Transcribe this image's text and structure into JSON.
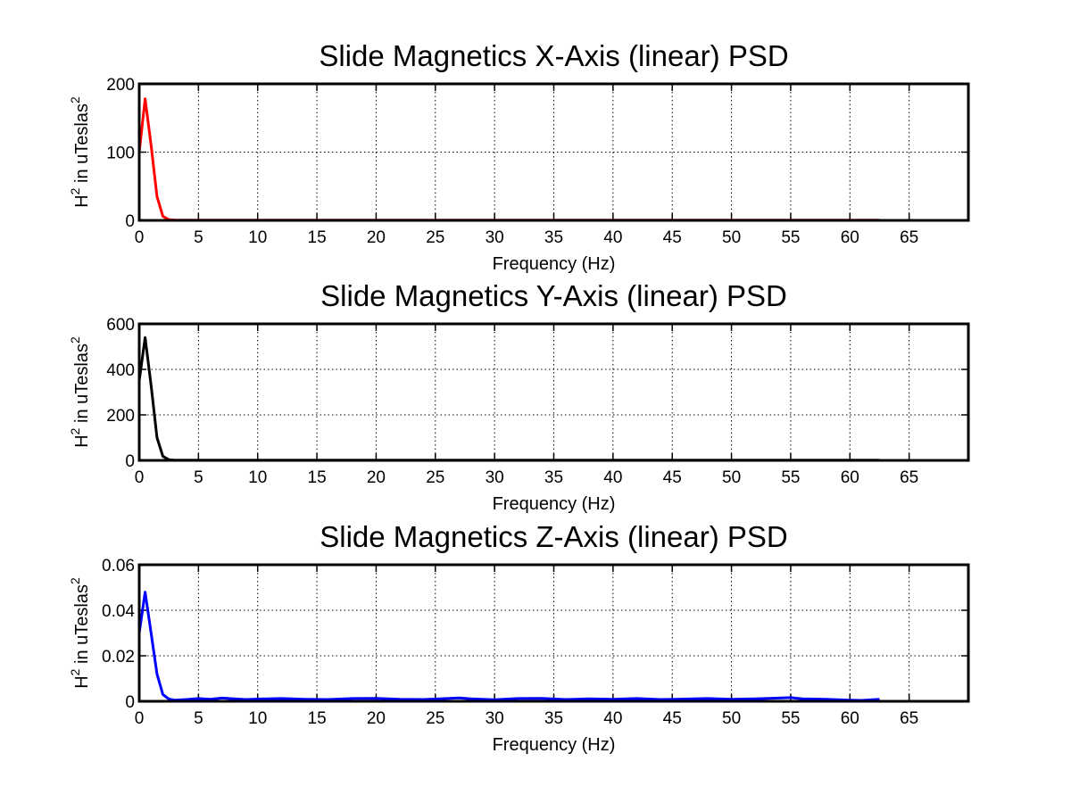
{
  "chart_data": [
    {
      "type": "line",
      "title": "Slide Magnetics X-Axis (linear) PSD",
      "xlabel": "Frequency (Hz)",
      "ylabel": {
        "base": "H",
        "sup1": "2",
        "mid": " in uTeslas",
        "sup2": "2"
      },
      "xlim": [
        0,
        70
      ],
      "ylim": [
        0,
        200
      ],
      "xticks": [
        0,
        5,
        10,
        15,
        20,
        25,
        30,
        35,
        40,
        45,
        50,
        55,
        60,
        65
      ],
      "yticks": [
        0,
        100,
        200
      ],
      "ytick_labels": [
        "0",
        "100",
        "200"
      ],
      "grid": true,
      "series": [
        {
          "color": "#ff0000",
          "x": [
            0,
            0.5,
            1,
            1.5,
            2,
            2.5,
            3,
            5,
            10,
            20,
            30,
            40,
            50,
            60,
            62.5
          ],
          "y": [
            100,
            178,
            110,
            35,
            6,
            1,
            0.5,
            0.4,
            0.3,
            0.3,
            0.3,
            0.3,
            0.3,
            0.3,
            0.3
          ]
        }
      ]
    },
    {
      "type": "line",
      "title": "Slide Magnetics Y-Axis (linear) PSD",
      "xlabel": "Frequency (Hz)",
      "ylabel": {
        "base": "H",
        "sup1": "2",
        "mid": " in uTeslas",
        "sup2": "2"
      },
      "xlim": [
        0,
        70
      ],
      "ylim": [
        0,
        600
      ],
      "xticks": [
        0,
        5,
        10,
        15,
        20,
        25,
        30,
        35,
        40,
        45,
        50,
        55,
        60,
        65
      ],
      "yticks": [
        0,
        200,
        400,
        600
      ],
      "ytick_labels": [
        "0",
        "200",
        "400",
        "600"
      ],
      "grid": true,
      "series": [
        {
          "color": "#000000",
          "x": [
            0,
            0.5,
            1,
            1.5,
            2,
            2.5,
            3,
            5,
            10,
            20,
            30,
            40,
            50,
            60,
            62.5
          ],
          "y": [
            350,
            540,
            330,
            100,
            18,
            3,
            1,
            1,
            1,
            1,
            1,
            1,
            1,
            1,
            1
          ]
        }
      ]
    },
    {
      "type": "line",
      "title": "Slide Magnetics Z-Axis (linear) PSD",
      "xlabel": "Frequency (Hz)",
      "ylabel": {
        "base": "H",
        "sup1": "2",
        "mid": " in uTeslas",
        "sup2": "2"
      },
      "xlim": [
        0,
        70
      ],
      "ylim": [
        0,
        0.06
      ],
      "xticks": [
        0,
        5,
        10,
        15,
        20,
        25,
        30,
        35,
        40,
        45,
        50,
        55,
        60,
        65
      ],
      "yticks": [
        0,
        0.02,
        0.04,
        0.06
      ],
      "ytick_labels": [
        "0",
        "0.02",
        "0.04",
        "0.06"
      ],
      "grid": true,
      "series": [
        {
          "color": "#0000ff",
          "x": [
            0,
            0.5,
            1,
            1.5,
            2,
            2.5,
            3,
            4,
            5,
            6,
            7,
            8,
            9,
            10,
            12,
            14,
            16,
            18,
            20,
            22,
            24,
            26,
            27,
            28,
            30,
            32,
            34,
            36,
            38,
            40,
            42,
            44,
            46,
            48,
            50,
            52,
            54,
            55,
            56,
            58,
            60,
            61,
            62.5
          ],
          "y": [
            0.03,
            0.048,
            0.03,
            0.012,
            0.003,
            0.001,
            0.0005,
            0.0008,
            0.0012,
            0.0009,
            0.0014,
            0.0011,
            0.0008,
            0.001,
            0.0012,
            0.0009,
            0.0008,
            0.0012,
            0.0013,
            0.0009,
            0.0008,
            0.0012,
            0.0015,
            0.0011,
            0.0007,
            0.0012,
            0.0013,
            0.0008,
            0.0011,
            0.0009,
            0.0012,
            0.0008,
            0.001,
            0.0012,
            0.0009,
            0.0011,
            0.0014,
            0.0016,
            0.0011,
            0.0009,
            0.0005,
            0.0004,
            0.0009
          ]
        }
      ]
    }
  ]
}
